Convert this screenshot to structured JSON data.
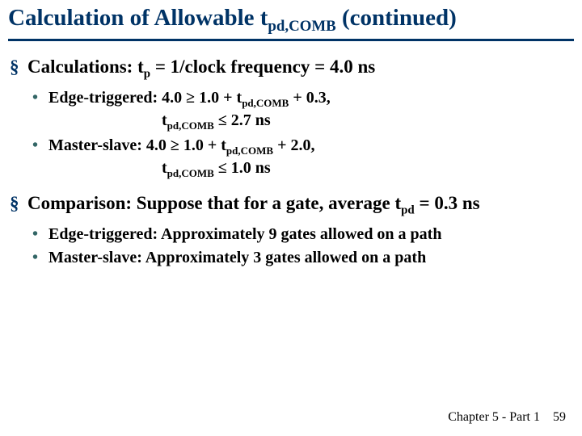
{
  "colors": {
    "title": "#003366",
    "rule": "#003366",
    "l1_bullet": "#003366",
    "l2_bullet": "#336666",
    "footer": "#000000"
  },
  "title": {
    "pre": "Calculation of Allowable t",
    "sub": "pd,COMB",
    "post": " (continued)"
  },
  "sections": [
    {
      "heading": {
        "pre": "Calculations: t",
        "sub": "p",
        "post": " = 1/clock frequency = 4.0 ns"
      },
      "items": [
        {
          "line1": {
            "pre": "Edge-triggered: 4.0 ≥ 1.0 + t",
            "sub1": "pd,COMB",
            "mid": " + 0.3,"
          },
          "line2": {
            "pre": "t",
            "sub": "pd,COMB",
            "post": " ≤ 2.7 ns"
          }
        },
        {
          "line1": {
            "pre": "Master-slave: 4.0 ≥ 1.0 + t",
            "sub1": "pd,COMB",
            "mid": " + 2.0,"
          },
          "line2": {
            "pre": "t",
            "sub": "pd,COMB",
            "post": " ≤ 1.0 ns"
          }
        }
      ]
    },
    {
      "heading": {
        "pre": "Comparison: Suppose that for a gate, average t",
        "sub": "pd",
        "post": " = 0.3 ns"
      },
      "items": [
        {
          "text": "Edge-triggered: Approximately 9 gates allowed on a path"
        },
        {
          "text": "Master-slave: Approximately 3 gates allowed on a path"
        }
      ]
    }
  ],
  "footer": {
    "chapter": "Chapter 5 - Part 1",
    "page": "59"
  }
}
